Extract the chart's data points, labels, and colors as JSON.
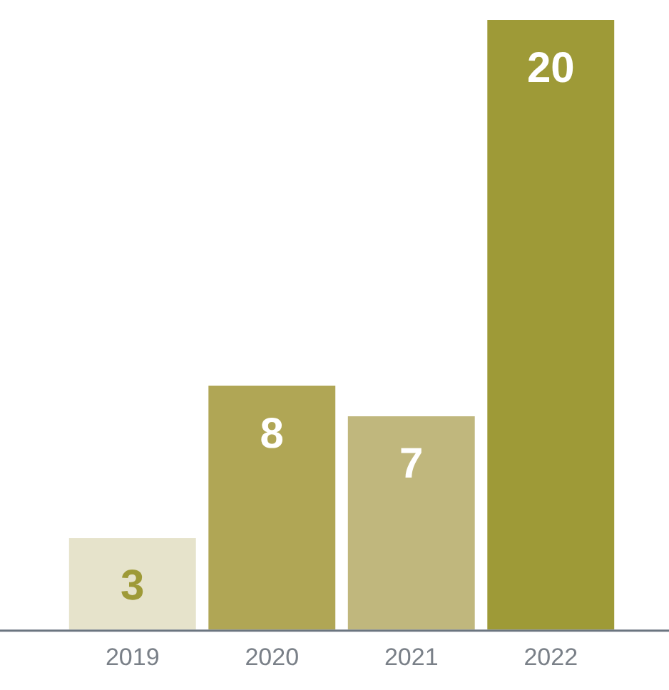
{
  "chart_data": {
    "type": "bar",
    "categories": [
      "2019",
      "2020",
      "2021",
      "2022"
    ],
    "values": [
      3,
      8,
      7,
      20
    ],
    "colors": [
      "#e6e3cb",
      "#b0a655",
      "#c0b77d",
      "#9e9a37"
    ],
    "data_labels": true,
    "grid": false,
    "legend": false,
    "tick_labels": "x"
  }
}
